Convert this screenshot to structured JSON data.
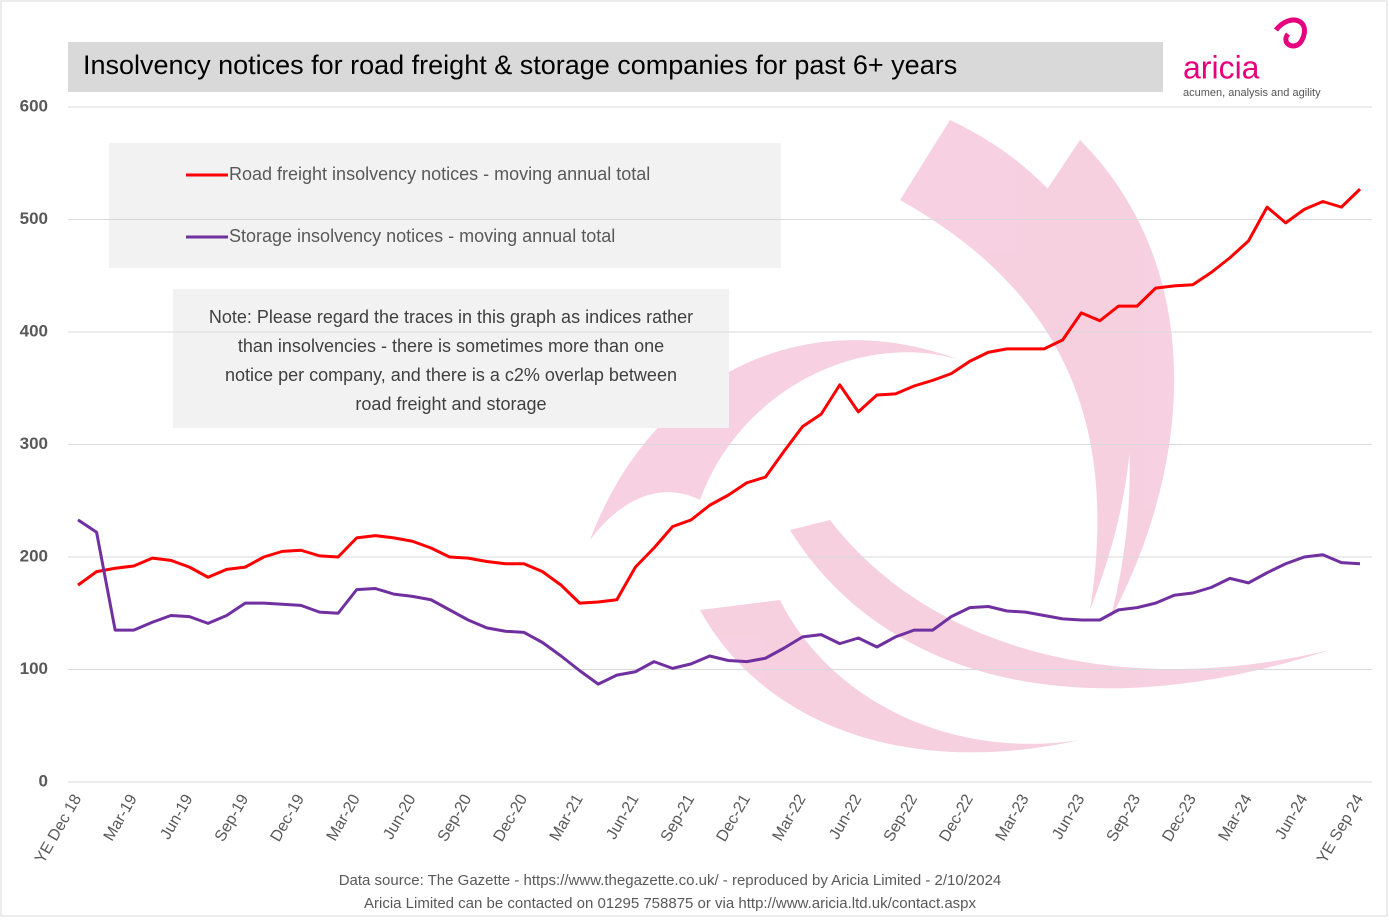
{
  "chart_data": {
    "type": "line",
    "title": "Insolvency notices for road freight & storage companies for past 6+ years",
    "logo": "aricia",
    "tagline": "acumen, analysis and agility",
    "note": [
      "Note: Please regard the traces in this graph as indices rather",
      "than insolvencies - there is sometimes more than one",
      "notice per company, and there is a c2% overlap between",
      "road freight and storage"
    ],
    "source": [
      "Data source: The Gazette - https://www.thegazette.co.uk/ - reproduced by Aricia Limited - 2/10/2024",
      "Aricia Limited can be contacted on 01295 758875 or via http://www.aricia.ltd.uk/contact.aspx"
    ],
    "categories": [
      "YE Dec 18",
      null,
      null,
      "Mar-19",
      null,
      null,
      "Jun-19",
      null,
      null,
      "Sep-19",
      null,
      null,
      "Dec-19",
      null,
      null,
      "Mar-20",
      null,
      null,
      "Jun-20",
      null,
      null,
      "Sep-20",
      null,
      null,
      "Dec-20",
      null,
      null,
      "Mar-21",
      null,
      null,
      "Jun-21",
      null,
      null,
      "Sep-21",
      null,
      null,
      "Dec-21",
      null,
      null,
      "Mar-22",
      null,
      null,
      "Jun-22",
      null,
      null,
      "Sep-22",
      null,
      null,
      "Dec-22",
      null,
      null,
      "Mar-23",
      null,
      null,
      "Jun-23",
      null,
      null,
      "Sep-23",
      null,
      null,
      "Dec-23",
      null,
      null,
      "Mar-24",
      null,
      null,
      "Jun-24",
      null,
      null,
      "YE Sep 24"
    ],
    "series": [
      {
        "name": "Road freight insolvency notices - moving annual total",
        "color": "#ff0000",
        "values": [
          175,
          187,
          190,
          192,
          199,
          197,
          191,
          182,
          189,
          191,
          200,
          205,
          206,
          201,
          200,
          217,
          219,
          217,
          214,
          208,
          200,
          199,
          196,
          194,
          194,
          187,
          175,
          159,
          160,
          162,
          191,
          208,
          227,
          233,
          246,
          255,
          266,
          271,
          294,
          316,
          327,
          353,
          329,
          344,
          345,
          352,
          357,
          363,
          374,
          382,
          385,
          385,
          385,
          393,
          417,
          410,
          423,
          423,
          439,
          441,
          442,
          453,
          466,
          481,
          511,
          497,
          509,
          516,
          511,
          527
        ]
      },
      {
        "name": "Storage insolvency notices - moving annual total",
        "color": "#7030a0",
        "values": [
          233,
          222,
          135,
          135,
          142,
          148,
          147,
          141,
          148,
          159,
          159,
          158,
          157,
          151,
          150,
          171,
          172,
          167,
          165,
          162,
          153,
          144,
          137,
          134,
          133,
          124,
          112,
          99,
          87,
          95,
          98,
          107,
          101,
          105,
          112,
          108,
          107,
          110,
          119,
          129,
          131,
          123,
          128,
          120,
          129,
          135,
          135,
          147,
          155,
          156,
          152,
          151,
          148,
          145,
          144,
          144,
          153,
          155,
          159,
          166,
          168,
          173,
          181,
          177,
          186,
          194,
          200,
          202,
          195,
          194
        ]
      }
    ],
    "ylim": [
      0,
      600
    ],
    "yticks": [
      0,
      100,
      200,
      300,
      400,
      500,
      600
    ],
    "grid": true
  }
}
